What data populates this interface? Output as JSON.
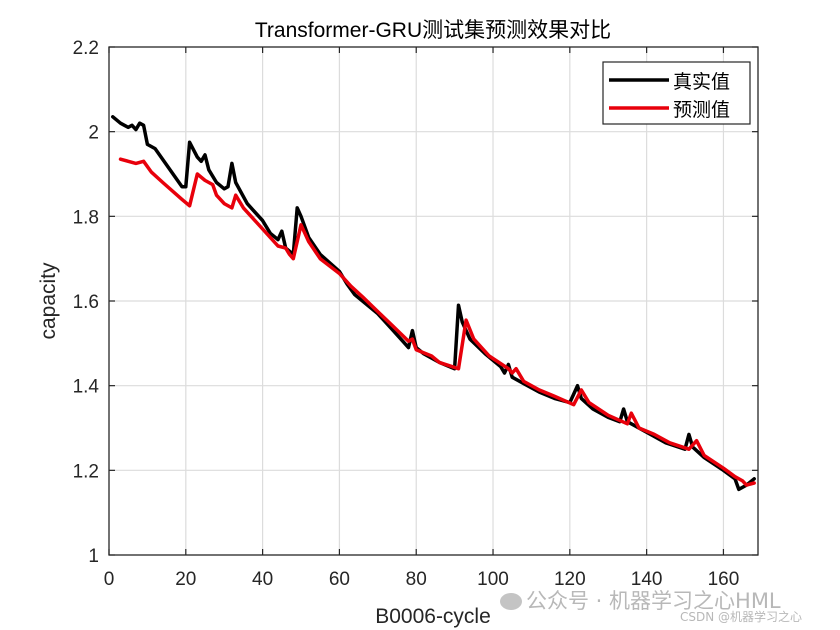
{
  "chart_data": {
    "type": "line",
    "title": "Transformer-GRU测试集预测效果对比",
    "xlabel": "B0006-cycle",
    "ylabel": "capacity",
    "xlim": [
      0,
      169
    ],
    "ylim": [
      1.0,
      2.2
    ],
    "xticks": [
      0,
      20,
      40,
      60,
      80,
      100,
      120,
      140,
      160
    ],
    "yticks": [
      1,
      1.2,
      1.4,
      1.6,
      1.8,
      2,
      2.2
    ],
    "ytick_labels": [
      "1",
      "1.2",
      "1.4",
      "1.6",
      "1.8",
      "2",
      "2.2"
    ],
    "grid": true,
    "legend_position": "upper right",
    "series": [
      {
        "name": "真实值",
        "color": "#000000",
        "points": [
          [
            1,
            2.035
          ],
          [
            3,
            2.02
          ],
          [
            5,
            2.01
          ],
          [
            6,
            2.015
          ],
          [
            7,
            2.005
          ],
          [
            8,
            2.02
          ],
          [
            9,
            2.015
          ],
          [
            10,
            1.97
          ],
          [
            12,
            1.96
          ],
          [
            19,
            1.87
          ],
          [
            20,
            1.87
          ],
          [
            21,
            1.975
          ],
          [
            23,
            1.94
          ],
          [
            24,
            1.93
          ],
          [
            25,
            1.945
          ],
          [
            26,
            1.91
          ],
          [
            28,
            1.88
          ],
          [
            30,
            1.865
          ],
          [
            31,
            1.87
          ],
          [
            32,
            1.925
          ],
          [
            33,
            1.88
          ],
          [
            36,
            1.83
          ],
          [
            40,
            1.79
          ],
          [
            42,
            1.76
          ],
          [
            44,
            1.745
          ],
          [
            45,
            1.765
          ],
          [
            46,
            1.725
          ],
          [
            48,
            1.71
          ],
          [
            49,
            1.82
          ],
          [
            50,
            1.8
          ],
          [
            52,
            1.75
          ],
          [
            55,
            1.71
          ],
          [
            60,
            1.67
          ],
          [
            62,
            1.64
          ],
          [
            64,
            1.615
          ],
          [
            70,
            1.57
          ],
          [
            74,
            1.53
          ],
          [
            77,
            1.5
          ],
          [
            78,
            1.49
          ],
          [
            79,
            1.53
          ],
          [
            80,
            1.49
          ],
          [
            82,
            1.475
          ],
          [
            86,
            1.455
          ],
          [
            90,
            1.44
          ],
          [
            91,
            1.59
          ],
          [
            92,
            1.55
          ],
          [
            94,
            1.51
          ],
          [
            98,
            1.475
          ],
          [
            102,
            1.445
          ],
          [
            103,
            1.43
          ],
          [
            104,
            1.45
          ],
          [
            105,
            1.42
          ],
          [
            108,
            1.405
          ],
          [
            112,
            1.385
          ],
          [
            116,
            1.37
          ],
          [
            120,
            1.36
          ],
          [
            121,
            1.38
          ],
          [
            122,
            1.4
          ],
          [
            123,
            1.37
          ],
          [
            126,
            1.345
          ],
          [
            130,
            1.325
          ],
          [
            133,
            1.315
          ],
          [
            134,
            1.345
          ],
          [
            135,
            1.315
          ],
          [
            140,
            1.29
          ],
          [
            145,
            1.265
          ],
          [
            150,
            1.25
          ],
          [
            151,
            1.285
          ],
          [
            152,
            1.255
          ],
          [
            155,
            1.23
          ],
          [
            160,
            1.2
          ],
          [
            163,
            1.18
          ],
          [
            164,
            1.155
          ],
          [
            166,
            1.165
          ],
          [
            168,
            1.18
          ]
        ]
      },
      {
        "name": "预测值",
        "color": "#e8000b",
        "points": [
          [
            3,
            1.935
          ],
          [
            5,
            1.93
          ],
          [
            7,
            1.925
          ],
          [
            9,
            1.93
          ],
          [
            11,
            1.905
          ],
          [
            14,
            1.88
          ],
          [
            19,
            1.84
          ],
          [
            21,
            1.825
          ],
          [
            23,
            1.9
          ],
          [
            25,
            1.885
          ],
          [
            27,
            1.875
          ],
          [
            28,
            1.85
          ],
          [
            30,
            1.83
          ],
          [
            32,
            1.82
          ],
          [
            33,
            1.85
          ],
          [
            35,
            1.82
          ],
          [
            40,
            1.77
          ],
          [
            44,
            1.73
          ],
          [
            46,
            1.725
          ],
          [
            47,
            1.71
          ],
          [
            48,
            1.7
          ],
          [
            50,
            1.78
          ],
          [
            52,
            1.74
          ],
          [
            55,
            1.7
          ],
          [
            60,
            1.665
          ],
          [
            63,
            1.635
          ],
          [
            66,
            1.61
          ],
          [
            70,
            1.575
          ],
          [
            74,
            1.54
          ],
          [
            78,
            1.505
          ],
          [
            79,
            1.51
          ],
          [
            80,
            1.485
          ],
          [
            84,
            1.47
          ],
          [
            86,
            1.455
          ],
          [
            91,
            1.44
          ],
          [
            93,
            1.555
          ],
          [
            95,
            1.51
          ],
          [
            99,
            1.47
          ],
          [
            104,
            1.44
          ],
          [
            105,
            1.43
          ],
          [
            106,
            1.44
          ],
          [
            108,
            1.41
          ],
          [
            112,
            1.39
          ],
          [
            116,
            1.375
          ],
          [
            121,
            1.355
          ],
          [
            123,
            1.39
          ],
          [
            125,
            1.36
          ],
          [
            130,
            1.33
          ],
          [
            135,
            1.31
          ],
          [
            136,
            1.335
          ],
          [
            138,
            1.3
          ],
          [
            142,
            1.285
          ],
          [
            146,
            1.265
          ],
          [
            151,
            1.25
          ],
          [
            153,
            1.27
          ],
          [
            155,
            1.235
          ],
          [
            160,
            1.205
          ],
          [
            163,
            1.185
          ],
          [
            165,
            1.175
          ],
          [
            166,
            1.165
          ],
          [
            168,
            1.17
          ]
        ]
      }
    ]
  },
  "watermark": {
    "wechat": "公众号 · 机器学习之心HML",
    "csdn": "CSDN @机器学习之心"
  }
}
